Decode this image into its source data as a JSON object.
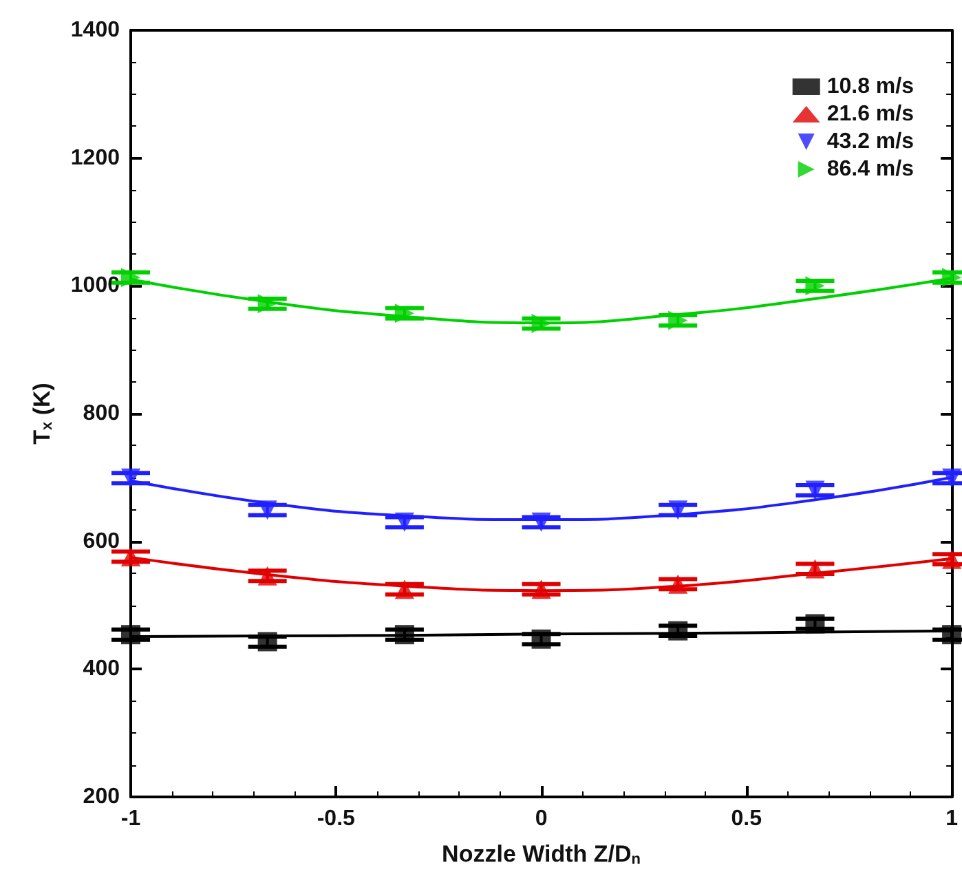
{
  "chart_data": {
    "type": "scatter",
    "xlabel": "Nozzle Width Z/D$_{n}$",
    "ylabel": "T$_{x}$ (K)",
    "x": [
      -1,
      -0.667,
      -0.333,
      0,
      0.333,
      0.667,
      1
    ],
    "xlim": [
      -1,
      1
    ],
    "xticks": [
      -1,
      -0.5,
      0,
      0.5,
      1
    ],
    "ylim": [
      200,
      1400
    ],
    "yticks": [
      200,
      400,
      600,
      800,
      1000,
      1200,
      1400
    ],
    "grid": false,
    "legend": "top right",
    "series": [
      {
        "name": "10.8 m/s",
        "color": "#000000",
        "marker": "square",
        "values": [
          454,
          443,
          454,
          447,
          460,
          471,
          454
        ],
        "errors": [
          8,
          8,
          8,
          8,
          8,
          8,
          8
        ]
      },
      {
        "name": "21.6 m/s",
        "color": "#e00000",
        "marker": "triangle",
        "values": [
          576,
          546,
          525,
          525,
          533,
          557,
          572
        ],
        "errors": [
          8,
          8,
          8,
          8,
          8,
          8,
          8
        ]
      },
      {
        "name": "43.2 m/s",
        "color": "#2020ff",
        "marker": "triangle-down",
        "values": [
          699,
          649,
          630,
          630,
          649,
          680,
          699
        ],
        "errors": [
          8,
          8,
          8,
          8,
          8,
          8,
          8
        ]
      },
      {
        "name": "86.4 m/s",
        "color": "#00d000",
        "marker": "triangle-right",
        "values": [
          1013,
          972,
          957,
          941,
          946,
          1000,
          1013
        ],
        "errors": [
          8,
          8,
          8,
          8,
          8,
          8,
          8
        ]
      },
      {
        "type": "line",
        "color": "#000000",
        "marker": "none",
        "values": [
          451,
          452,
          453,
          455,
          456,
          458,
          460
        ]
      },
      {
        "type": "line",
        "color": "#e00000",
        "marker": "none",
        "values": [
          575,
          548,
          530,
          523,
          530,
          550,
          573
        ]
      },
      {
        "type": "line",
        "color": "#2020ff",
        "marker": "none",
        "values": [
          695,
          660,
          640,
          634,
          642,
          665,
          700
        ]
      },
      {
        "type": "line",
        "color": "#00d000",
        "marker": "none",
        "values": [
          1010,
          975,
          952,
          942,
          955,
          980,
          1012
        ]
      }
    ]
  }
}
